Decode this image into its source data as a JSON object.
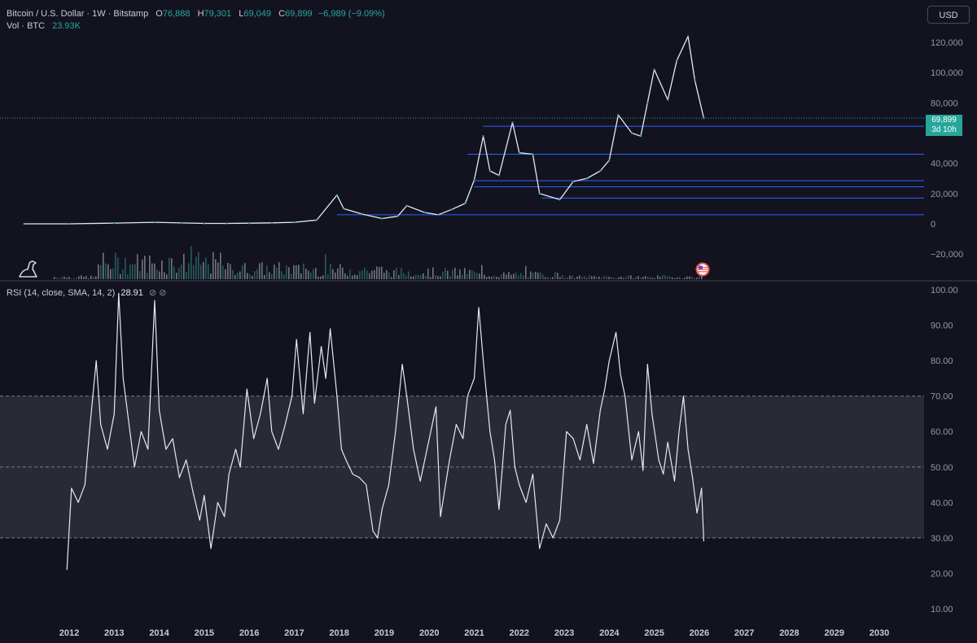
{
  "header": {
    "symbol": "Bitcoin / U.S. Dollar · 1W · Bitstamp",
    "open_label": "O",
    "open": "76,888",
    "high_label": "H",
    "high": "79,301",
    "low_label": "L",
    "low": "69,049",
    "close_label": "C",
    "close": "69,899",
    "change": "−6,989 (−9.09%)",
    "vol_label": "Vol · BTC",
    "vol_value": "23.93K"
  },
  "currency_button": "USD",
  "price_tag": {
    "price": "69,899",
    "countdown": "3d 10h"
  },
  "rsi_legend": {
    "label": "RSI (14, close, SMA, 14, 2)",
    "value": "28.91",
    "icons": "⊘ ⊘"
  },
  "colors": {
    "background": "#131320",
    "up": "#26a69a",
    "down": "#ef5350",
    "level_line": "#2962ff",
    "rsi_line": "#e8e8ee",
    "rsi_band": "#2a2a36"
  },
  "icons": {
    "logo": "dinosaur-icon",
    "event": "us-flag-icon",
    "eye": "eye-off-icon"
  },
  "chart_data": [
    {
      "type": "line",
      "name": "price",
      "title": "Bitcoin / U.S. Dollar · 1W · Bitstamp",
      "ylim": [
        -30000,
        130000
      ],
      "y_ticks": [
        120000,
        100000,
        80000,
        60000,
        40000,
        20000,
        0,
        -20000
      ],
      "y_tick_labels": [
        "120,000",
        "100,000",
        "80,000",
        "",
        "40,000",
        "20,000",
        "0",
        "−20,000"
      ],
      "x": [
        2011.0,
        2012.0,
        2013.0,
        2013.9,
        2014.5,
        2015.0,
        2015.5,
        2016.0,
        2016.5,
        2017.0,
        2017.5,
        2017.95,
        2018.1,
        2018.5,
        2018.95,
        2019.3,
        2019.5,
        2019.9,
        2020.2,
        2020.5,
        2020.8,
        2021.0,
        2021.2,
        2021.35,
        2021.55,
        2021.85,
        2022.0,
        2022.3,
        2022.45,
        2022.9,
        2023.2,
        2023.5,
        2023.8,
        2024.0,
        2024.2,
        2024.5,
        2024.7,
        2024.85,
        2025.0,
        2025.3,
        2025.5,
        2025.75,
        2025.9,
        2026.1
      ],
      "y": [
        5,
        12,
        500,
        1000,
        600,
        250,
        250,
        430,
        650,
        1000,
        2500,
        19000,
        10000,
        6500,
        3500,
        5000,
        12000,
        7500,
        6000,
        9500,
        13500,
        29000,
        58000,
        35000,
        32000,
        67000,
        47000,
        46000,
        20000,
        16000,
        28000,
        30000,
        35000,
        42000,
        72000,
        60000,
        58000,
        80000,
        102000,
        82000,
        108000,
        124000,
        95000,
        69899
      ],
      "level_lines": [
        {
          "y": 64500,
          "x_start": 2021.2
        },
        {
          "y": 46000,
          "x_start": 2020.85
        },
        {
          "y": 28500,
          "x_start": 2021.0
        },
        {
          "y": 24500,
          "x_start": 2021.0
        },
        {
          "y": 17000,
          "x_start": 2022.5
        },
        {
          "y": 6000,
          "x_start": 2017.95
        }
      ],
      "last_price_line": 69899
    },
    {
      "type": "line",
      "name": "RSI",
      "title": "RSI (14, close, SMA, 14, 2)",
      "ylim": [
        5,
        100
      ],
      "y_ticks": [
        100,
        90,
        80,
        70,
        60,
        50,
        40,
        30,
        20,
        10
      ],
      "y_tick_labels": [
        "100.00",
        "90.00",
        "80.00",
        "70.00",
        "60.00",
        "50.00",
        "40.00",
        "30.00",
        "20.00",
        "10.00"
      ],
      "bands": {
        "upper": 70,
        "middle": 50,
        "lower": 30
      },
      "x": [
        2011.95,
        2012.05,
        2012.2,
        2012.35,
        2012.45,
        2012.6,
        2012.7,
        2012.85,
        2013.0,
        2013.1,
        2013.2,
        2013.35,
        2013.45,
        2013.6,
        2013.75,
        2013.9,
        2014.0,
        2014.15,
        2014.3,
        2014.45,
        2014.6,
        2014.75,
        2014.9,
        2015.0,
        2015.15,
        2015.3,
        2015.45,
        2015.55,
        2015.7,
        2015.8,
        2015.95,
        2016.1,
        2016.25,
        2016.4,
        2016.5,
        2016.65,
        2016.8,
        2016.95,
        2017.05,
        2017.2,
        2017.35,
        2017.45,
        2017.6,
        2017.7,
        2017.8,
        2017.95,
        2018.05,
        2018.15,
        2018.3,
        2018.45,
        2018.6,
        2018.75,
        2018.85,
        2018.95,
        2019.1,
        2019.25,
        2019.4,
        2019.5,
        2019.65,
        2019.8,
        2019.95,
        2020.15,
        2020.25,
        2020.45,
        2020.6,
        2020.75,
        2020.85,
        2021.0,
        2021.1,
        2021.2,
        2021.35,
        2021.45,
        2021.55,
        2021.7,
        2021.8,
        2021.9,
        2022.0,
        2022.15,
        2022.3,
        2022.45,
        2022.6,
        2022.75,
        2022.9,
        2023.05,
        2023.2,
        2023.35,
        2023.5,
        2023.65,
        2023.8,
        2023.9,
        2024.0,
        2024.15,
        2024.25,
        2024.35,
        2024.5,
        2024.65,
        2024.75,
        2024.85,
        2024.95,
        2025.1,
        2025.2,
        2025.3,
        2025.45,
        2025.55,
        2025.65,
        2025.75,
        2025.85,
        2025.95,
        2026.05,
        2026.1
      ],
      "y": [
        21,
        44,
        40,
        45,
        60,
        80,
        62,
        55,
        65,
        99,
        75,
        60,
        50,
        60,
        55,
        97,
        66,
        55,
        58,
        47,
        52,
        43,
        35,
        42,
        27,
        40,
        36,
        48,
        55,
        50,
        72,
        58,
        65,
        75,
        60,
        55,
        62,
        70,
        86,
        65,
        88,
        68,
        84,
        75,
        89,
        70,
        55,
        52,
        48,
        47,
        45,
        32,
        30,
        38,
        45,
        60,
        79,
        70,
        55,
        46,
        55,
        67,
        36,
        52,
        62,
        58,
        70,
        75,
        95,
        80,
        60,
        52,
        38,
        62,
        66,
        50,
        45,
        40,
        48,
        27,
        34,
        30,
        35,
        60,
        58,
        52,
        62,
        51,
        66,
        72,
        80,
        88,
        76,
        70,
        52,
        60,
        49,
        79,
        65,
        52,
        48,
        57,
        46,
        60,
        70,
        55,
        47,
        37,
        44,
        29
      ]
    }
  ],
  "x_axis": {
    "labels": [
      "2012",
      "2013",
      "2014",
      "2015",
      "2016",
      "2017",
      "2018",
      "2019",
      "2020",
      "2021",
      "2022",
      "2023",
      "2024",
      "2025",
      "2026",
      "2027",
      "2028",
      "2029",
      "2030"
    ],
    "range": [
      2011.0,
      2031.0
    ]
  }
}
